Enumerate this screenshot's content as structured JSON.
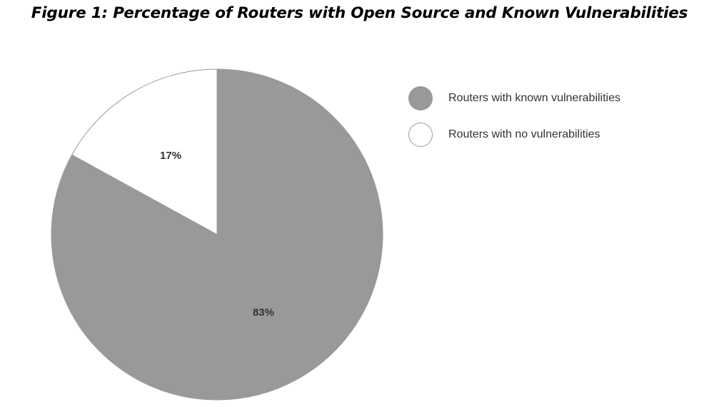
{
  "title": "Figure 1: Percentage of Routers with Open Source and Known Vulnerabilities",
  "chart_data": {
    "type": "pie",
    "title": "Figure 1: Percentage of Routers with Open Source and Known Vulnerabilities",
    "labels": [
      "Routers with known vulnerabilities",
      "Routers with no vulnerabilities"
    ],
    "values": [
      83,
      17
    ],
    "data_labels": [
      "83%",
      "17%"
    ],
    "colors": [
      "#999999",
      "#ffffff"
    ],
    "edge_color": "#999999",
    "legend_position": "right"
  }
}
